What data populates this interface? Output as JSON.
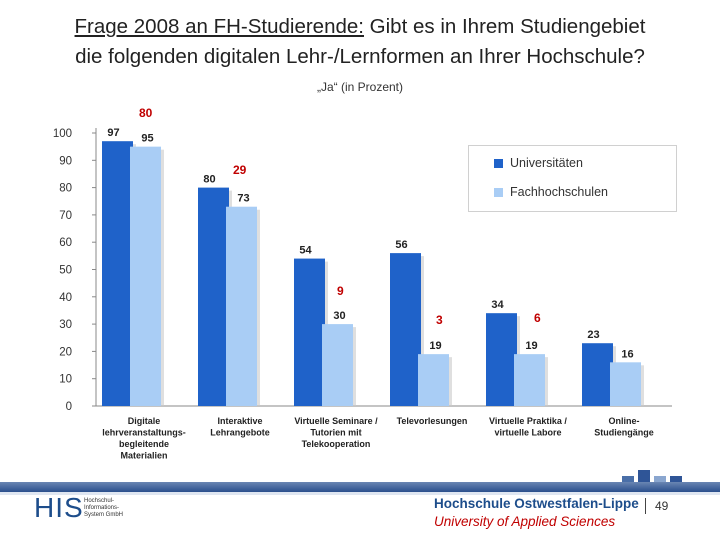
{
  "slide": {
    "title_prefix": "Frage 2008 an FH-Studierende:",
    "title_rest": " Gibt es in Ihrem Studiengebiet",
    "title_line2": "die folgenden digitalen Lehr-/Lernformen an Ihrer Hochschule?",
    "subtitle": "„Ja“ (in Prozent)",
    "page_number": "49"
  },
  "chart_data": {
    "type": "bar",
    "categories": [
      [
        "Digitale",
        "lehrveranstaltungs-",
        "begleitende",
        "Materialien"
      ],
      [
        "Interaktive",
        "Lehrangebote"
      ],
      [
        "Virtuelle Seminare /",
        "Tutorien mit",
        "Telekooperation"
      ],
      [
        "Televorlesungen"
      ],
      [
        "Virtuelle Praktika /",
        "virtuelle Labore"
      ],
      [
        "Online-",
        "Studiengänge"
      ]
    ],
    "series": [
      {
        "name": "Universitäten",
        "values": [
          97,
          80,
          54,
          56,
          34,
          23
        ],
        "color": "#1f62c9"
      },
      {
        "name": "Fachhochschulen",
        "values": [
          95,
          73,
          30,
          19,
          19,
          16
        ],
        "color": "#a9cdf5"
      }
    ],
    "ylim": [
      0,
      100
    ],
    "yticks": [
      0,
      10,
      20,
      30,
      40,
      50,
      60,
      70,
      80,
      90,
      100
    ],
    "legend_position": "top-right",
    "grid": false,
    "annotations": [
      {
        "text": "80",
        "category": 0
      },
      {
        "text": "29",
        "category": 1
      },
      {
        "text": "9",
        "category": 2
      },
      {
        "text": "3",
        "category": 3
      },
      {
        "text": "6",
        "category": 4
      }
    ],
    "annotation_color": "#c00000"
  },
  "footer": {
    "his_logo": "HIS",
    "his_lines": [
      "Hochschul-",
      "Informations-",
      "System GmbH"
    ],
    "uni_name": "Hochschule Ostwestfalen-Lippe",
    "uni_sub": "University of Applied Sciences"
  }
}
